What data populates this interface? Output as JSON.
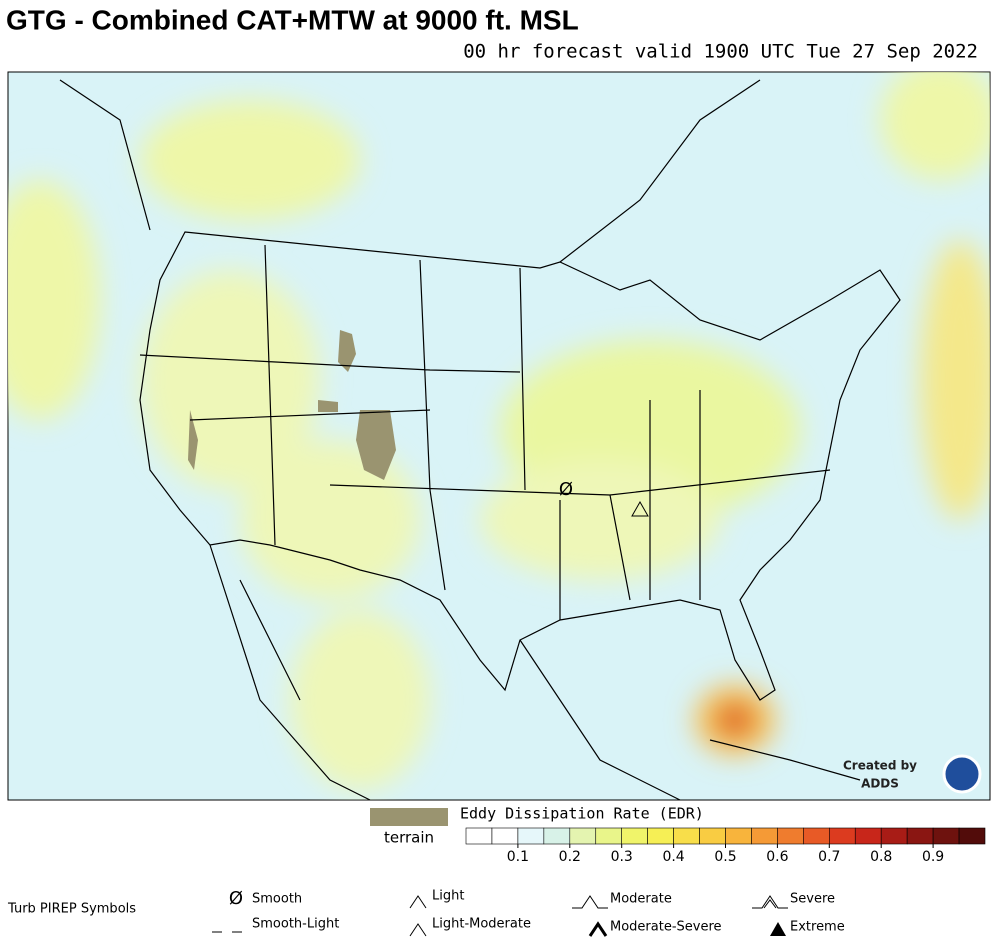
{
  "header": {
    "title": "GTG - Combined CAT+MTW at 9000 ft. MSL",
    "subtitle": "00 hr forecast valid 1900 UTC Tue 27 Sep 2022"
  },
  "map": {
    "credit": [
      "Created by",
      "ADDS"
    ]
  },
  "legend": {
    "terrain_label": "terrain",
    "terrain_color": "#9a9470",
    "scale_title": "Eddy Dissipation Rate (EDR)",
    "scale_range": [
      0,
      1
    ],
    "ticks": [
      0.1,
      0.2,
      0.3,
      0.4,
      0.5,
      0.6,
      0.7,
      0.8,
      0.9
    ],
    "colors": [
      "#ffffff",
      "#ffffff",
      "#e6f7fa",
      "#d8f2e8",
      "#e4f4b0",
      "#e9f58a",
      "#f0f46a",
      "#f6ef55",
      "#f8de4a",
      "#f9cc42",
      "#f8b43c",
      "#f59a36",
      "#ef7c2e",
      "#e85a26",
      "#dc3b1f",
      "#c8261a",
      "#a81c16",
      "#8a1612",
      "#6e120e",
      "#520c0a"
    ]
  },
  "pireps": {
    "title": "Turb PIREP Symbols",
    "symbols": [
      "Smooth",
      "Smooth-Light",
      "Light",
      "Light-Moderate",
      "Moderate",
      "Moderate-Severe",
      "Severe",
      "Extreme"
    ]
  }
}
